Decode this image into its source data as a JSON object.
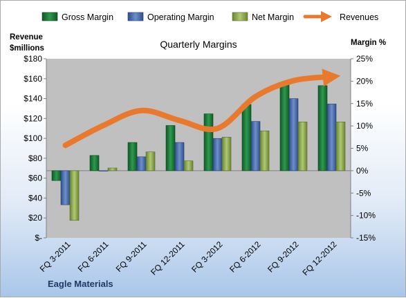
{
  "chart_data": {
    "type": "bar",
    "title": "Quarterly Margins",
    "company": "Eagle Materials",
    "categories": [
      "FQ 3-2011",
      "FQ 6-2011",
      "FQ 9-2011",
      "FQ 12-2011",
      "FQ 3-2012",
      "FQ 6-2012",
      "FQ 9-2012",
      "FQ 12-2012"
    ],
    "series": [
      {
        "name": "Gross Margin",
        "axis": "right",
        "color": "#1e7a3a",
        "values": [
          -2.2,
          3.4,
          6.3,
          10.1,
          12.7,
          14.8,
          19.6,
          19.0
        ]
      },
      {
        "name": "Operating Margin",
        "axis": "right",
        "color": "#4a6fb0",
        "values": [
          -7.6,
          0.0,
          3.1,
          6.3,
          7.2,
          11.0,
          16.1,
          14.9
        ]
      },
      {
        "name": "Net Margin",
        "axis": "right",
        "color": "#8fa94e",
        "values": [
          -11.1,
          0.6,
          4.2,
          2.2,
          7.5,
          8.9,
          10.9,
          10.9
        ]
      },
      {
        "name": "Revenues",
        "axis": "left",
        "type": "line",
        "color": "#e8792d",
        "values": [
          93,
          113,
          128,
          118,
          110,
          142,
          158,
          162
        ]
      }
    ],
    "y_left": {
      "label": "Revenue $millions",
      "ylim": [
        0,
        180
      ],
      "ticks": [
        0,
        20,
        40,
        60,
        80,
        100,
        120,
        140,
        160,
        180
      ],
      "tick_labels": [
        "$-",
        "$20",
        "$40",
        "$60",
        "$80",
        "$100",
        "$120",
        "$140",
        "$160",
        "$180"
      ]
    },
    "y_right": {
      "label": "Margin %",
      "ylim": [
        -15,
        25
      ],
      "ticks": [
        -15,
        -10,
        -5,
        0,
        5,
        10,
        15,
        20,
        25
      ],
      "tick_labels": [
        "-15%",
        "-10%",
        "-5%",
        "0%",
        "5%",
        "10%",
        "15%",
        "20%",
        "25%"
      ]
    },
    "legend_position": "top",
    "grid": false,
    "plot_background": "#c0c0c0"
  }
}
